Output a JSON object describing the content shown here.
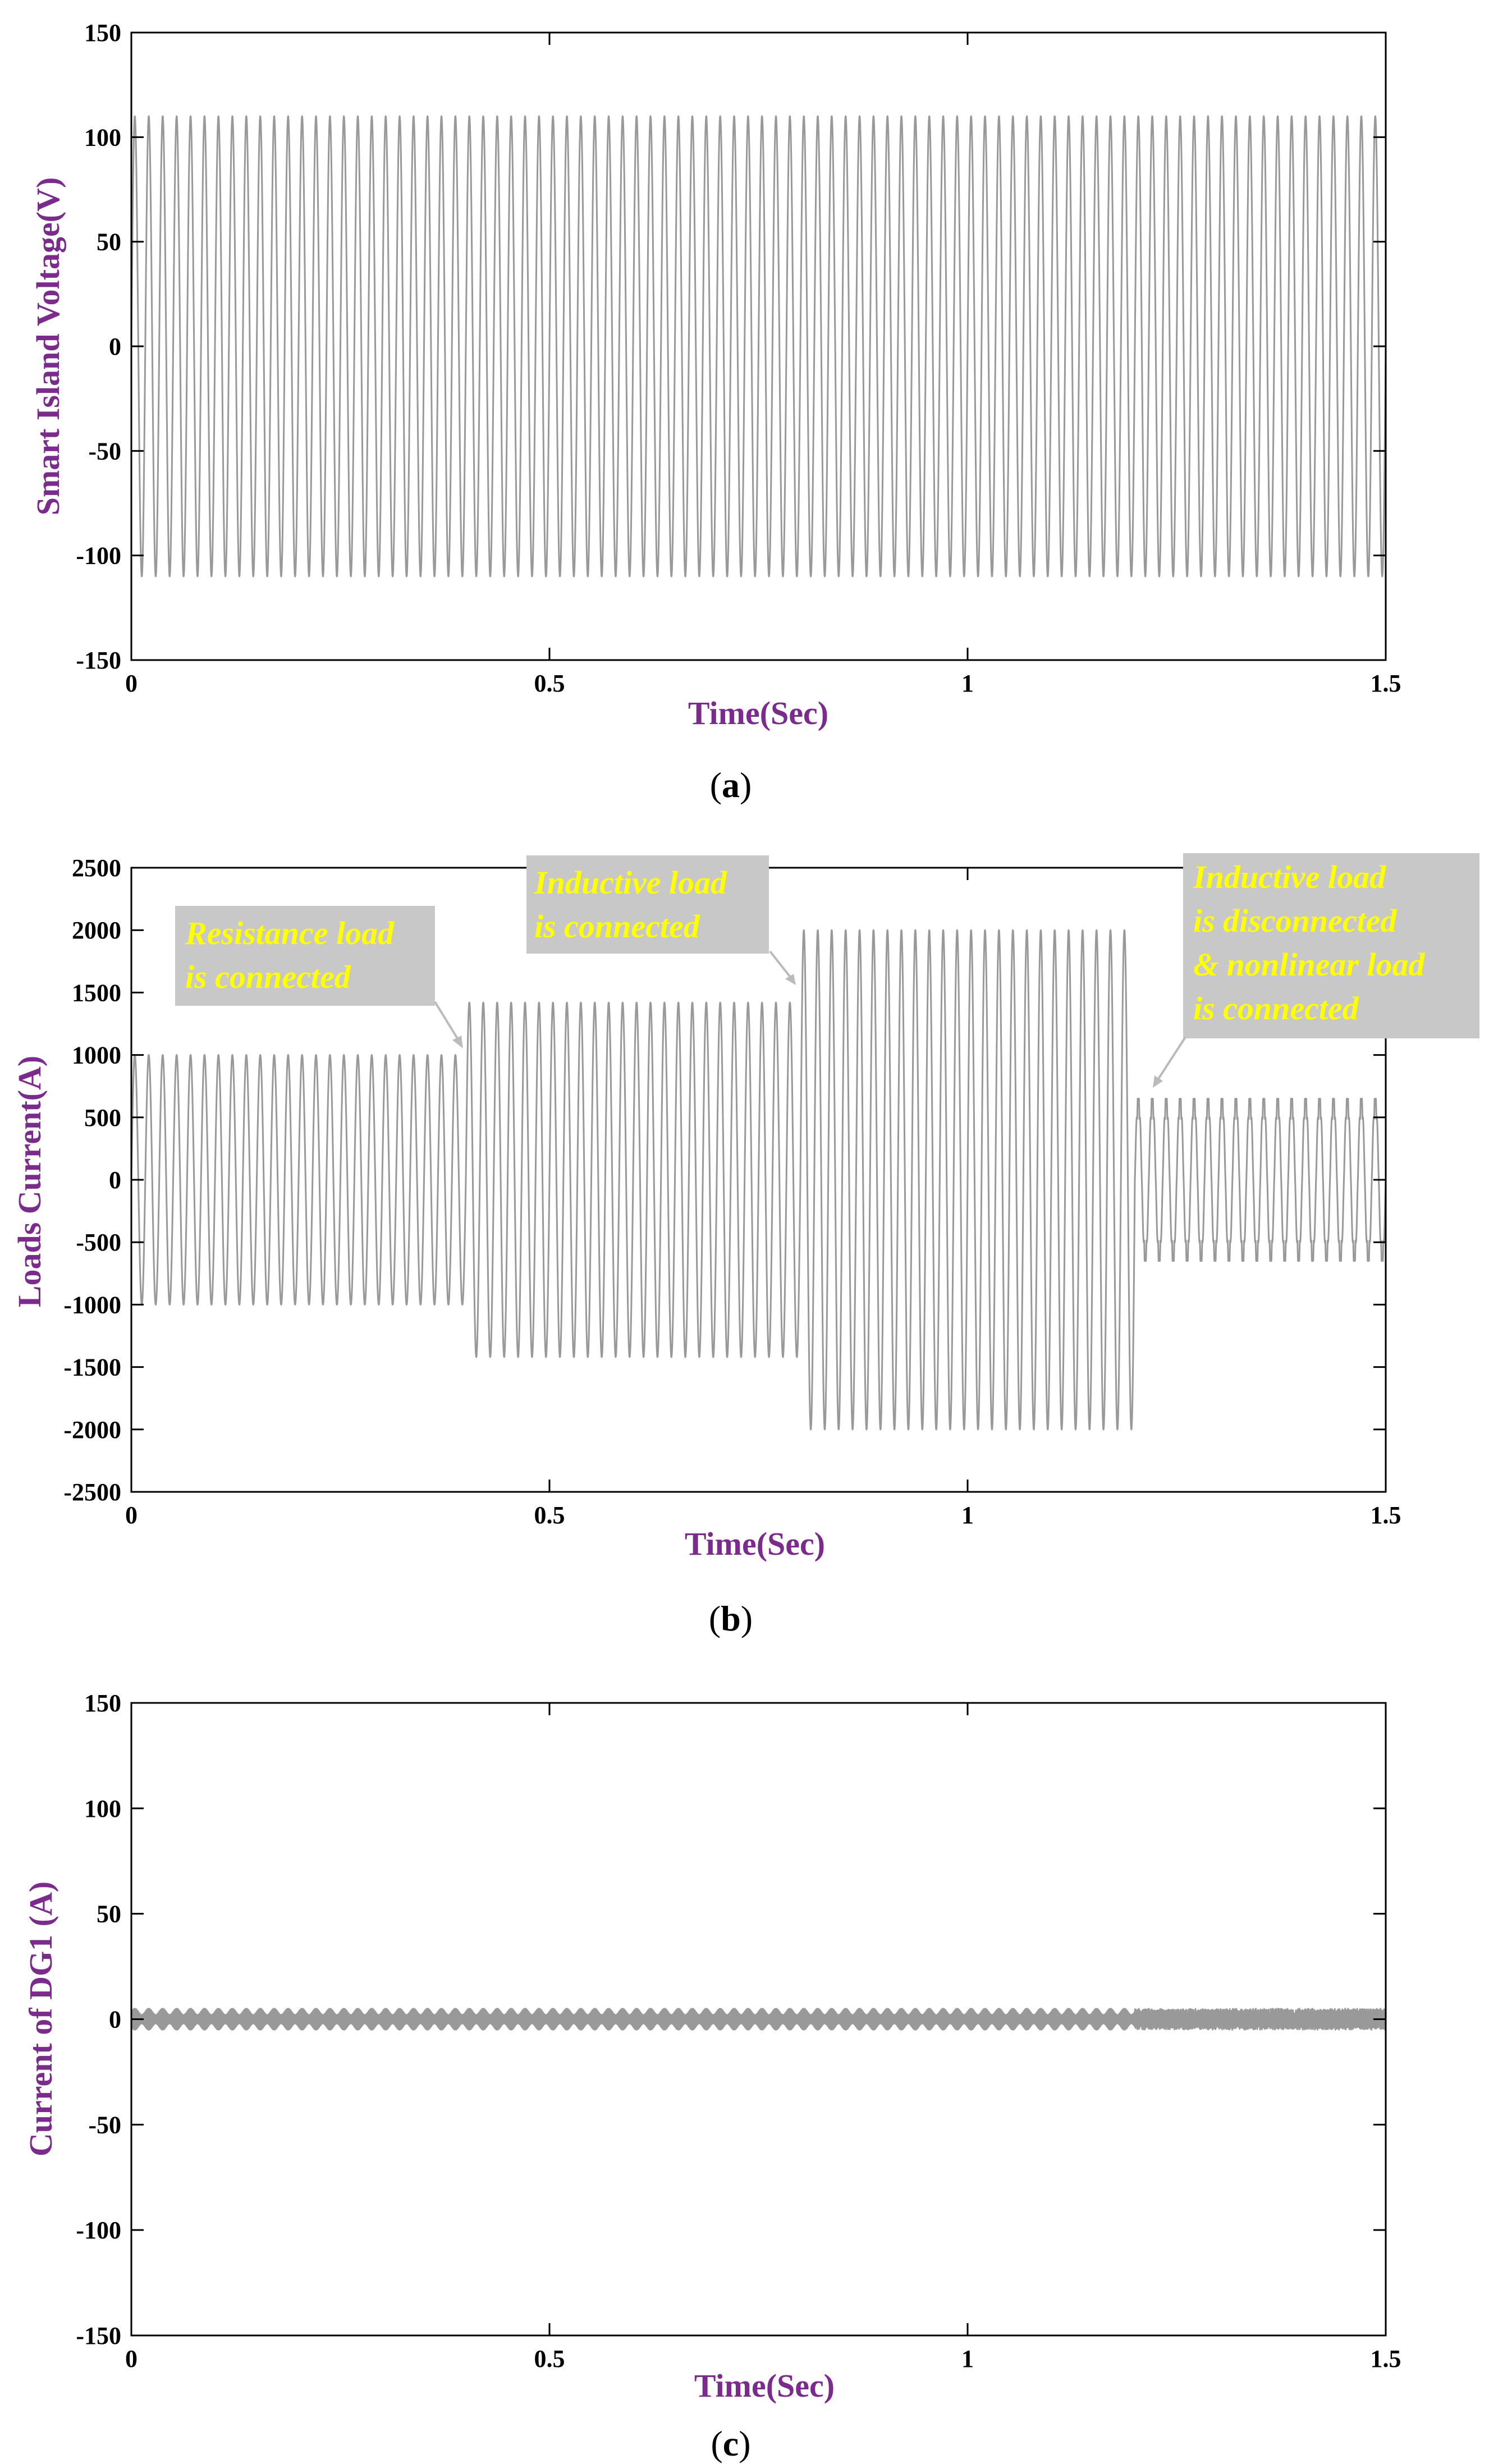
{
  "colors": {
    "signal": "#999999",
    "label": "#7a2b8c",
    "annotation_text": "#ffff00",
    "annotation_box": "#c8c8c8"
  },
  "chart_data": [
    {
      "type": "line",
      "panel": "(a)",
      "panel_letter": "a",
      "title": "",
      "xlabel": "Time(Sec)",
      "ylabel": "Smart Island Voltage(V)",
      "xlim": [
        0,
        1.5
      ],
      "ylim": [
        -150,
        150
      ],
      "xticks": [
        0,
        0.5,
        1,
        1.5
      ],
      "xtick_labels": [
        "0",
        "0.5",
        "1",
        "1.5"
      ],
      "yticks": [
        150,
        100,
        50,
        0,
        -50,
        -100,
        -150
      ],
      "ytick_labels": [
        "150",
        "100",
        "50",
        "0",
        "-50",
        "-100",
        "-150"
      ],
      "series": [
        {
          "name": "Smart island voltage",
          "waveform": "sinusoid",
          "frequency_hz": 60,
          "segments": [
            {
              "t_start": 0,
              "t_end": 1.5,
              "amplitude": 110
            }
          ]
        }
      ],
      "annotations": []
    },
    {
      "type": "line",
      "panel": "(b)",
      "panel_letter": "b",
      "title": "",
      "xlabel": "Time(Sec)",
      "ylabel": "Loads Current(A)",
      "xlim": [
        0,
        1.5
      ],
      "ylim": [
        -2500,
        2500
      ],
      "xticks": [
        0,
        0.5,
        1,
        1.5
      ],
      "xtick_labels": [
        "0",
        "0.5",
        "1",
        "1.5"
      ],
      "yticks": [
        2500,
        2000,
        1500,
        1000,
        500,
        0,
        -500,
        -1000,
        -1500,
        -2000,
        -2500
      ],
      "ytick_labels": [
        "2500",
        "2000",
        "1500",
        "1000",
        "500",
        "0",
        "-500",
        "-1000",
        "-1500",
        "-2000",
        "-2500"
      ],
      "series": [
        {
          "name": "Loads current",
          "waveform": "sinusoid",
          "frequency_hz": 60,
          "segments": [
            {
              "t_start": 0,
              "t_end": 0.4,
              "amplitude": 1000
            },
            {
              "t_start": 0.4,
              "t_end": 0.8,
              "amplitude": 1420
            },
            {
              "t_start": 0.8,
              "t_end": 1.2,
              "amplitude": 2000
            },
            {
              "t_start": 1.2,
              "t_end": 1.5,
              "amplitude": 650,
              "nonlinear": true
            }
          ]
        }
      ],
      "annotations": [
        {
          "lines": [
            "Resistance load",
            "is connected"
          ],
          "arrow_to": [
            0.4,
            1000
          ]
        },
        {
          "lines": [
            "Inductive load",
            "is connected"
          ],
          "arrow_to": [
            0.8,
            1420
          ]
        },
        {
          "lines": [
            "Inductive load",
            "is disconnected",
            "& nonlinear load",
            "is connected"
          ],
          "arrow_to": [
            1.2,
            700
          ]
        }
      ]
    },
    {
      "type": "line",
      "panel": "(c)",
      "panel_letter": "c",
      "title": "",
      "xlabel": "Time(Sec)",
      "ylabel": "Current of DG1 (A)",
      "xlim": [
        0,
        1.5
      ],
      "ylim": [
        -150,
        150
      ],
      "xticks": [
        0,
        0.5,
        1,
        1.5
      ],
      "xtick_labels": [
        "0",
        "0.5",
        "1",
        "1.5"
      ],
      "yticks": [
        150,
        100,
        50,
        0,
        -50,
        -100,
        -150
      ],
      "ytick_labels": [
        "150",
        "100",
        "50",
        "0",
        "-50",
        "-100",
        "-150"
      ],
      "series": [
        {
          "name": "DG1 current",
          "waveform": "ripple",
          "segments": [
            {
              "t_start": 0,
              "t_end": 1.2,
              "amplitude": 5
            },
            {
              "t_start": 1.2,
              "t_end": 1.5,
              "amplitude": 5,
              "noisy": true
            }
          ]
        }
      ],
      "annotations": []
    }
  ]
}
